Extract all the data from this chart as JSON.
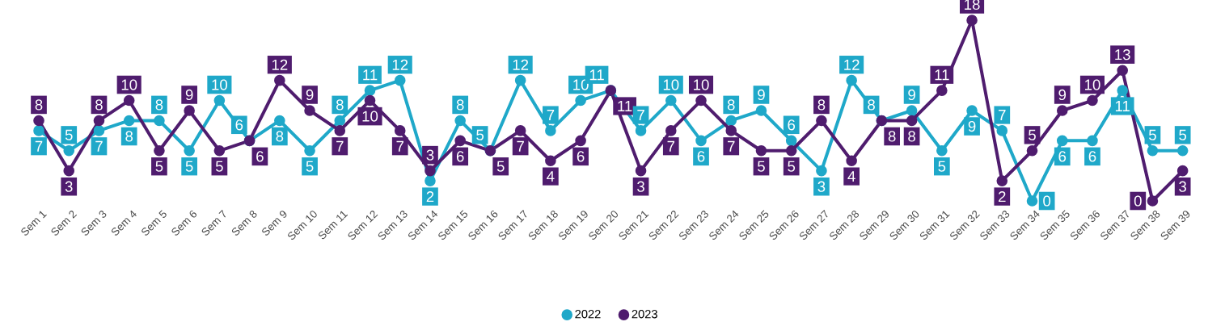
{
  "chart_data": {
    "type": "line",
    "categories": [
      "Sem 1",
      "Sem 2",
      "Sem 3",
      "Sem 4",
      "Sem 5",
      "Sem 6",
      "Sem 7",
      "Sem 8",
      "Sem 9",
      "Sem 10",
      "Sem 11",
      "Sem 12",
      "Sem 13",
      "Sem 14",
      "Sem 15",
      "Sem 16",
      "Sem 17",
      "Sem 18",
      "Sem 19",
      "Sem 20",
      "Sem 21",
      "Sem 22",
      "Sem 23",
      "Sem 24",
      "Sem 25",
      "Sem 26",
      "Sem 27",
      "Sem 28",
      "Sem 29",
      "Sem 30",
      "Sem 31",
      "Sem 32",
      "Sem 33",
      "Sem 34",
      "Sem 35",
      "Sem 36",
      "Sem 37",
      "Sem 38",
      "Sem 39"
    ],
    "series": [
      {
        "name": "2022",
        "color": "#1fa8c9",
        "values": [
          7,
          5,
          7,
          8,
          8,
          5,
          10,
          6,
          8,
          5,
          8,
          11,
          12,
          2,
          8,
          5,
          12,
          7,
          10,
          11,
          7,
          10,
          6,
          8,
          9,
          6,
          3,
          12,
          8,
          9,
          5,
          9,
          7,
          0,
          6,
          6,
          11,
          5,
          5
        ]
      },
      {
        "name": "2023",
        "color": "#4f1c6e",
        "values": [
          8,
          3,
          8,
          10,
          5,
          9,
          5,
          6,
          12,
          9,
          7,
          10,
          7,
          3,
          6,
          5,
          7,
          4,
          6,
          11,
          3,
          7,
          10,
          7,
          5,
          5,
          8,
          4,
          8,
          8,
          11,
          18,
          2,
          5,
          9,
          10,
          13,
          0,
          3
        ]
      }
    ],
    "data_labels": true,
    "marker": "circle",
    "legend": "bottom"
  }
}
